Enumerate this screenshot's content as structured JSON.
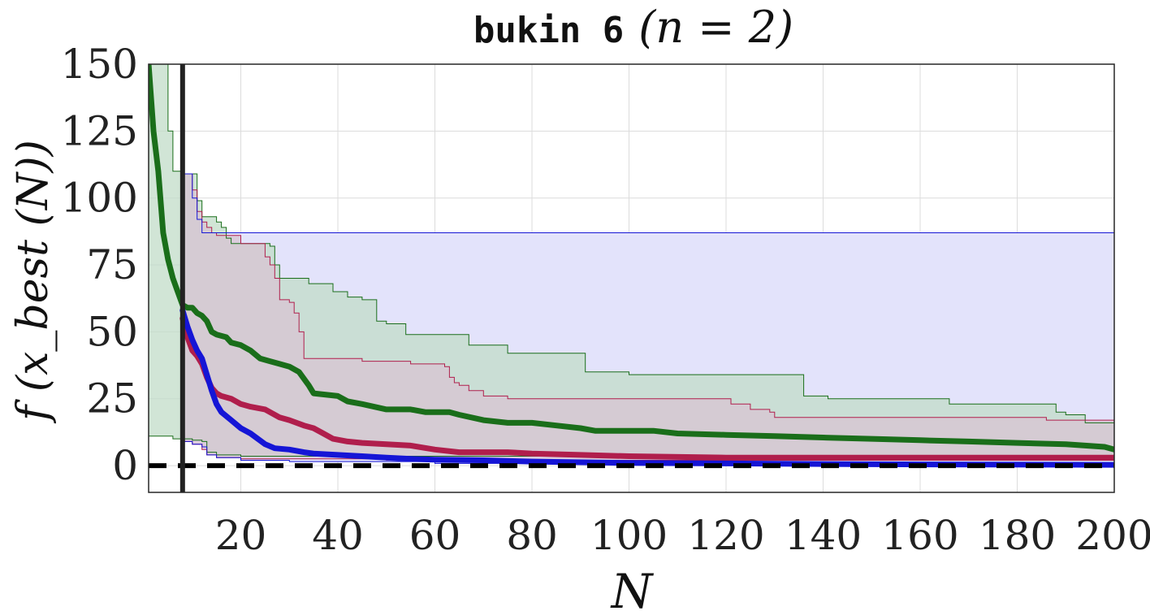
{
  "chart_data": {
    "type": "line",
    "title": {
      "prefix": "bukin 6",
      "math": "(n = 2)"
    },
    "xlabel": "N",
    "ylabel": "f (x_best (N))",
    "xlim": [
      1,
      200
    ],
    "ylim": [
      -10,
      150
    ],
    "x_ticks": [
      20,
      40,
      60,
      80,
      100,
      120,
      140,
      160,
      180,
      200
    ],
    "y_ticks": [
      0,
      25,
      50,
      75,
      100,
      125,
      150
    ],
    "grid": true,
    "vertical_marker_x": 8,
    "reference_line_y": 0,
    "colors": {
      "green": "#1a6e1a",
      "red": "#b01e4c",
      "blue": "#1515d6",
      "band_green": "#c2dcc8",
      "band_red": "#d8c4d2",
      "band_blue": "#e3e3fb",
      "overlap": "#c9c5d9",
      "grid": "#dcdcdc",
      "marker": "#222222"
    },
    "series": [
      {
        "color": "green",
        "median": [
          [
            1,
            150
          ],
          [
            2,
            125
          ],
          [
            3,
            110
          ],
          [
            4,
            87
          ],
          [
            5,
            77
          ],
          [
            6,
            70
          ],
          [
            7,
            65
          ],
          [
            8,
            60
          ],
          [
            9,
            59
          ],
          [
            10,
            59
          ],
          [
            11,
            57
          ],
          [
            12,
            56
          ],
          [
            13,
            54
          ],
          [
            14,
            50
          ],
          [
            15,
            49
          ],
          [
            17,
            48
          ],
          [
            18,
            46
          ],
          [
            20,
            45
          ],
          [
            22,
            43
          ],
          [
            24,
            40
          ],
          [
            26,
            39
          ],
          [
            28,
            38
          ],
          [
            30,
            37
          ],
          [
            32,
            35
          ],
          [
            34,
            30
          ],
          [
            35,
            27
          ],
          [
            40,
            26
          ],
          [
            42,
            24
          ],
          [
            45,
            23
          ],
          [
            50,
            21
          ],
          [
            55,
            21
          ],
          [
            58,
            20
          ],
          [
            63,
            20
          ],
          [
            65,
            19
          ],
          [
            70,
            17
          ],
          [
            75,
            16
          ],
          [
            80,
            16
          ],
          [
            85,
            15
          ],
          [
            90,
            14
          ],
          [
            93,
            13
          ],
          [
            105,
            13
          ],
          [
            110,
            12
          ],
          [
            120,
            11.5
          ],
          [
            130,
            11
          ],
          [
            140,
            10.5
          ],
          [
            150,
            10
          ],
          [
            160,
            9.5
          ],
          [
            170,
            9
          ],
          [
            180,
            8.5
          ],
          [
            190,
            8
          ],
          [
            198,
            7
          ],
          [
            200,
            6
          ]
        ],
        "upper": [
          [
            1,
            150
          ],
          [
            4,
            150
          ],
          [
            5,
            125
          ],
          [
            6,
            110
          ],
          [
            7,
            110
          ],
          [
            8,
            109
          ],
          [
            9,
            109
          ],
          [
            10,
            109
          ],
          [
            11,
            99
          ],
          [
            12,
            93
          ],
          [
            14,
            93
          ],
          [
            15,
            91
          ],
          [
            16,
            89
          ],
          [
            17,
            85
          ],
          [
            18,
            83
          ],
          [
            22,
            83
          ],
          [
            25,
            83
          ],
          [
            26,
            82
          ],
          [
            27,
            75
          ],
          [
            28,
            70
          ],
          [
            33,
            70
          ],
          [
            34,
            68
          ],
          [
            38,
            68
          ],
          [
            39,
            65
          ],
          [
            42,
            63
          ],
          [
            45,
            62
          ],
          [
            48,
            54
          ],
          [
            50,
            53
          ],
          [
            54,
            49
          ],
          [
            65,
            49
          ],
          [
            67,
            46
          ],
          [
            67,
            45
          ],
          [
            75,
            42
          ],
          [
            90,
            42
          ],
          [
            91,
            35
          ],
          [
            100,
            34
          ],
          [
            135,
            34
          ],
          [
            136,
            26
          ],
          [
            140,
            26
          ],
          [
            141,
            25
          ],
          [
            165,
            25
          ],
          [
            166,
            23
          ],
          [
            183,
            23
          ],
          [
            188,
            20
          ],
          [
            190,
            19
          ],
          [
            193,
            19
          ],
          [
            194,
            16
          ],
          [
            200,
            16
          ]
        ],
        "lower": [
          [
            1,
            11
          ],
          [
            5,
            11
          ],
          [
            6,
            10
          ],
          [
            9,
            10
          ],
          [
            10,
            9.5
          ],
          [
            12,
            9
          ],
          [
            13,
            5
          ],
          [
            15,
            4
          ],
          [
            20,
            3.5
          ],
          [
            200,
            3
          ]
        ]
      },
      {
        "color": "red",
        "median": [
          [
            8,
            55
          ],
          [
            9,
            48
          ],
          [
            10,
            43
          ],
          [
            11,
            41
          ],
          [
            12,
            38
          ],
          [
            13,
            33
          ],
          [
            14,
            29
          ],
          [
            15,
            27
          ],
          [
            16,
            26
          ],
          [
            18,
            25
          ],
          [
            20,
            23
          ],
          [
            22,
            22
          ],
          [
            25,
            21
          ],
          [
            28,
            18
          ],
          [
            30,
            17
          ],
          [
            33,
            15
          ],
          [
            35,
            14
          ],
          [
            37,
            12
          ],
          [
            39,
            10
          ],
          [
            42,
            9
          ],
          [
            45,
            8.5
          ],
          [
            50,
            8
          ],
          [
            55,
            7.5
          ],
          [
            60,
            6
          ],
          [
            65,
            5
          ],
          [
            75,
            5
          ],
          [
            80,
            4.5
          ],
          [
            90,
            4
          ],
          [
            100,
            3.5
          ],
          [
            120,
            3
          ],
          [
            140,
            3
          ],
          [
            160,
            3
          ],
          [
            200,
            3
          ]
        ],
        "upper": [
          [
            8,
            109
          ],
          [
            9,
            109
          ],
          [
            10,
            103
          ],
          [
            11,
            95
          ],
          [
            12,
            91
          ],
          [
            13,
            89
          ],
          [
            14,
            87
          ],
          [
            15,
            86
          ],
          [
            20,
            83
          ],
          [
            22,
            83
          ],
          [
            24,
            83
          ],
          [
            25,
            78
          ],
          [
            26,
            75
          ],
          [
            27,
            70
          ],
          [
            28,
            62
          ],
          [
            29,
            62
          ],
          [
            30,
            61
          ],
          [
            31,
            57
          ],
          [
            32,
            50
          ],
          [
            33,
            40
          ],
          [
            36,
            40
          ],
          [
            45,
            39
          ],
          [
            55,
            38
          ],
          [
            60,
            38
          ],
          [
            62,
            37
          ],
          [
            63,
            33
          ],
          [
            64,
            31
          ],
          [
            65,
            30
          ],
          [
            67,
            28
          ],
          [
            70,
            26
          ],
          [
            75,
            25
          ],
          [
            105,
            25
          ],
          [
            115,
            25
          ],
          [
            121,
            23
          ],
          [
            125,
            21
          ],
          [
            129,
            20
          ],
          [
            130,
            18
          ],
          [
            170,
            18
          ],
          [
            183,
            18
          ],
          [
            186,
            17
          ],
          [
            200,
            17
          ]
        ],
        "lower": [
          [
            8,
            9
          ],
          [
            10,
            8
          ],
          [
            12,
            6
          ],
          [
            13,
            4
          ],
          [
            15,
            3
          ],
          [
            20,
            2.5
          ],
          [
            50,
            2
          ],
          [
            80,
            2
          ],
          [
            200,
            1.5
          ]
        ]
      },
      {
        "color": "blue",
        "median": [
          [
            8,
            58
          ],
          [
            9,
            52
          ],
          [
            10,
            47
          ],
          [
            11,
            43
          ],
          [
            12,
            40
          ],
          [
            13,
            34
          ],
          [
            14,
            28
          ],
          [
            15,
            23
          ],
          [
            16,
            20
          ],
          [
            18,
            17
          ],
          [
            20,
            14
          ],
          [
            22,
            12
          ],
          [
            25,
            8
          ],
          [
            27,
            6.5
          ],
          [
            30,
            6
          ],
          [
            33,
            5
          ],
          [
            35,
            4.5
          ],
          [
            40,
            4
          ],
          [
            45,
            3.5
          ],
          [
            50,
            3
          ],
          [
            55,
            2.5
          ],
          [
            60,
            2.2
          ],
          [
            70,
            2
          ],
          [
            80,
            1.5
          ],
          [
            100,
            1
          ],
          [
            120,
            0.8
          ],
          [
            150,
            0.5
          ],
          [
            200,
            0.3
          ]
        ],
        "upper": [
          [
            8,
            109
          ],
          [
            9,
            109
          ],
          [
            10,
            100
          ],
          [
            11,
            92
          ],
          [
            12,
            87
          ],
          [
            13,
            87
          ],
          [
            20,
            87
          ],
          [
            200,
            87
          ]
        ],
        "lower": [
          [
            8,
            9
          ],
          [
            10,
            8
          ],
          [
            12,
            7
          ],
          [
            13,
            4
          ],
          [
            15,
            3
          ],
          [
            20,
            2
          ],
          [
            30,
            1.5
          ],
          [
            60,
            0.8
          ],
          [
            200,
            0.3
          ]
        ]
      }
    ]
  }
}
